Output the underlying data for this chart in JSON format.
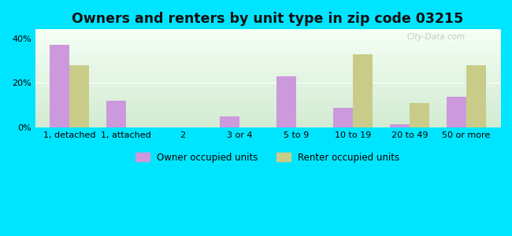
{
  "title": "Owners and renters by unit type in zip code 03215",
  "categories": [
    "1, detached",
    "1, attached",
    "2",
    "3 or 4",
    "5 to 9",
    "10 to 19",
    "20 to 49",
    "50 or more"
  ],
  "owner_values": [
    37,
    12,
    0,
    5,
    23,
    9,
    1.5,
    14
  ],
  "renter_values": [
    28,
    0,
    0,
    0,
    0,
    33,
    11,
    28
  ],
  "owner_color": "#cc99dd",
  "renter_color": "#c8cc88",
  "outer_background": "#00e5ff",
  "bg_top_color": "#f0faf0",
  "bg_bottom_color": "#d8eed8",
  "yticks": [
    0,
    20,
    40
  ],
  "ytick_labels": [
    "0%",
    "20%",
    "40%"
  ],
  "ymax": 44,
  "bar_width": 0.35,
  "title_fontsize": 12.5,
  "tick_fontsize": 8,
  "legend_labels": [
    "Owner occupied units",
    "Renter occupied units"
  ],
  "watermark": "City-Data.com"
}
